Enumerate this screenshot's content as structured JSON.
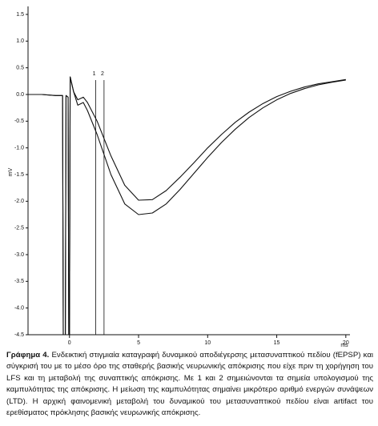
{
  "chart_data": {
    "type": "line",
    "x": [
      -3,
      -2,
      -1,
      -0.5,
      -0.45,
      -0.3,
      -0.25,
      -0.1,
      -0.05,
      0,
      0.05,
      0.3,
      0.6,
      1.0,
      1.3,
      2,
      3,
      4,
      5,
      6,
      7,
      8,
      9,
      10,
      11,
      12,
      13,
      14,
      15,
      16,
      17,
      18,
      19,
      20
    ],
    "series": [
      {
        "color": "#111111",
        "values": [
          0.0,
          0.0,
          -0.02,
          -0.02,
          -4.5,
          -4.5,
          -0.02,
          -0.05,
          -4.5,
          -4.5,
          0.33,
          0.05,
          -0.1,
          -0.05,
          -0.15,
          -0.5,
          -1.15,
          -1.7,
          -1.98,
          -1.97,
          -1.8,
          -1.55,
          -1.28,
          -1.0,
          -0.75,
          -0.52,
          -0.33,
          -0.17,
          -0.04,
          0.06,
          0.14,
          0.2,
          0.24,
          0.28
        ]
      },
      {
        "color": "#111111",
        "values": [
          0.0,
          0.0,
          -0.02,
          -0.02,
          -4.5,
          -4.5,
          -0.02,
          -0.05,
          -4.5,
          -4.5,
          0.33,
          0.05,
          -0.2,
          -0.15,
          -0.3,
          -0.75,
          -1.5,
          -2.05,
          -2.25,
          -2.22,
          -2.05,
          -1.78,
          -1.48,
          -1.18,
          -0.9,
          -0.65,
          -0.43,
          -0.25,
          -0.1,
          0.02,
          0.11,
          0.18,
          0.23,
          0.27
        ]
      }
    ],
    "markers": [
      {
        "x": 1.9,
        "label": "1"
      },
      {
        "x": 2.5,
        "label": "2"
      }
    ],
    "xlim": [
      -3,
      20.3
    ],
    "ylim": [
      -4.5,
      1.65
    ],
    "xticks": [
      0,
      5,
      10,
      15,
      20
    ],
    "yticks": [
      {
        "value": 1.5,
        "label": "1.5"
      },
      {
        "value": 1.0,
        "label": "1.0"
      },
      {
        "value": 0.5,
        "label": "0.5"
      },
      {
        "value": 0.0,
        "label": "0.0"
      },
      {
        "value": -0.5,
        "label": "-0.5"
      },
      {
        "value": -1.0,
        "label": "-1.0"
      },
      {
        "value": -1.5,
        "label": "-1.5"
      },
      {
        "value": -2.0,
        "label": "-2.0"
      },
      {
        "value": -2.5,
        "label": "-2.5"
      },
      {
        "value": -3.0,
        "label": "-3.0"
      },
      {
        "value": -3.5,
        "label": "-3.5"
      },
      {
        "value": -4.0,
        "label": "-4.0"
      },
      {
        "value": -4.5,
        "label": "-4.5"
      }
    ],
    "ylabel": "mV",
    "xlabel": "ms",
    "caption_label": "Γράφημα 4.",
    "caption": "Ενδεικτική στιγμιαία καταγραφή δυναμικού αποδιέγερσης μετασυναπτικού πεδίου (fEPSP) και σύγκρισή του με το μέσο όρο της σταθερής βασικής νευρωνικής απόκρισης που είχε πριν τη χορήγηση του LFS και τη μεταβολή της συναπτικής απόκρισης. Με 1 και 2 σημειώνονται τα σημεία υπολογισμού της καμπυλότητας της απόκρισης. Η μείωση της καμπυλότητας σημαίνει μικρότερο αριθμό ενεργών συνάψεων (LTD). Η αρχική φαινομενική μεταβολή του δυναμικού του μετασυναπτικού πεδίου είναι artifact του ερεθίσματος πρόκλησης βασικής νευρωνικής απόκρισης."
  }
}
